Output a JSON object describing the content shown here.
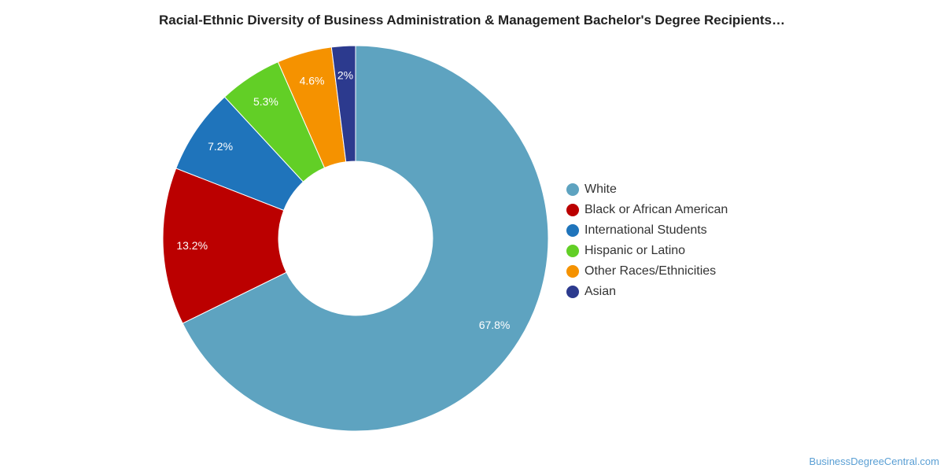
{
  "chart_data": {
    "type": "pie",
    "donut": true,
    "title": "Racial-Ethnic Diversity of Business Administration & Management Bachelor's Degree Recipients…",
    "legend_position": "right",
    "slices": [
      {
        "label": "White",
        "value": 67.8,
        "display": "67.8%",
        "color": "#5ea3c0"
      },
      {
        "label": "Black or African American",
        "value": 13.2,
        "display": "13.2%",
        "color": "#bb0000"
      },
      {
        "label": "International Students",
        "value": 7.2,
        "display": "7.2%",
        "color": "#1f74bb"
      },
      {
        "label": "Hispanic or Latino",
        "value": 5.3,
        "display": "5.3%",
        "color": "#62cf26"
      },
      {
        "label": "Other Races/Ethnicities",
        "value": 4.6,
        "display": "4.6%",
        "color": "#f59200"
      },
      {
        "label": "Asian",
        "value": 2.0,
        "display": "2%",
        "color": "#2c3a8e"
      }
    ]
  },
  "credit": "BusinessDegreeCentral.com"
}
